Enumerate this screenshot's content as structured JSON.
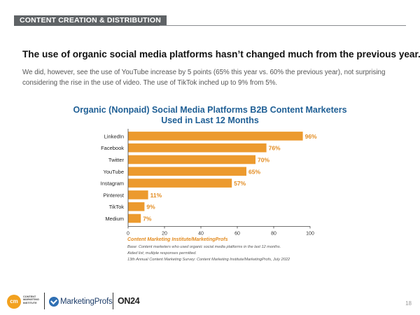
{
  "header": {
    "section_label": "CONTENT CREATION & DISTRIBUTION"
  },
  "headline": "The use of organic social media platforms hasn’t changed much from the previous year.",
  "subtext": "We did, however, see the use of YouTube increase by 5 points (65% this year vs. 60% the previous year), not surprising considering the rise in the use of video. The use of TikTok inched up to 9% from 5%.",
  "chart_data": {
    "type": "bar",
    "orientation": "horizontal",
    "title_line1": "Organic (Nonpaid) Social Media Platforms B2B Content Marketers",
    "title_line2": "Used in Last 12 Months",
    "categories": [
      "LinkedIn",
      "Facebook",
      "Twitter",
      "YouTube",
      "Instagram",
      "Pinterest",
      "TikTok",
      "Medium"
    ],
    "values": [
      96,
      76,
      70,
      65,
      57,
      11,
      9,
      7
    ],
    "value_labels": [
      "96%",
      "76%",
      "70%",
      "65%",
      "57%",
      "11%",
      "9%",
      "7%"
    ],
    "xlim": [
      0,
      100
    ],
    "xticks": [
      0,
      20,
      40,
      60,
      80,
      100
    ],
    "xlabel": "",
    "ylabel": "",
    "grid": false,
    "legend": "none",
    "bar_color": "#ec9a2e",
    "label_color": "#e38c21"
  },
  "source": {
    "title": "Content Marketing Institute/MarketingProfs",
    "note1": "Base: Content marketers who used organic social media platforms in the last 12 months.",
    "note2": "Aided list; multiple responses permitted.",
    "note3": "13th Annual Content Marketing Survey: Content Marketing Institute/MarketingProfs, July 2022"
  },
  "footer": {
    "cmi_monogram": "cm",
    "cmi_text": "CONTENT\nMARKETING\nINSTITUTE",
    "marketingprofs": "MarketingProfs",
    "on24": "ON24",
    "page_number": "18"
  }
}
